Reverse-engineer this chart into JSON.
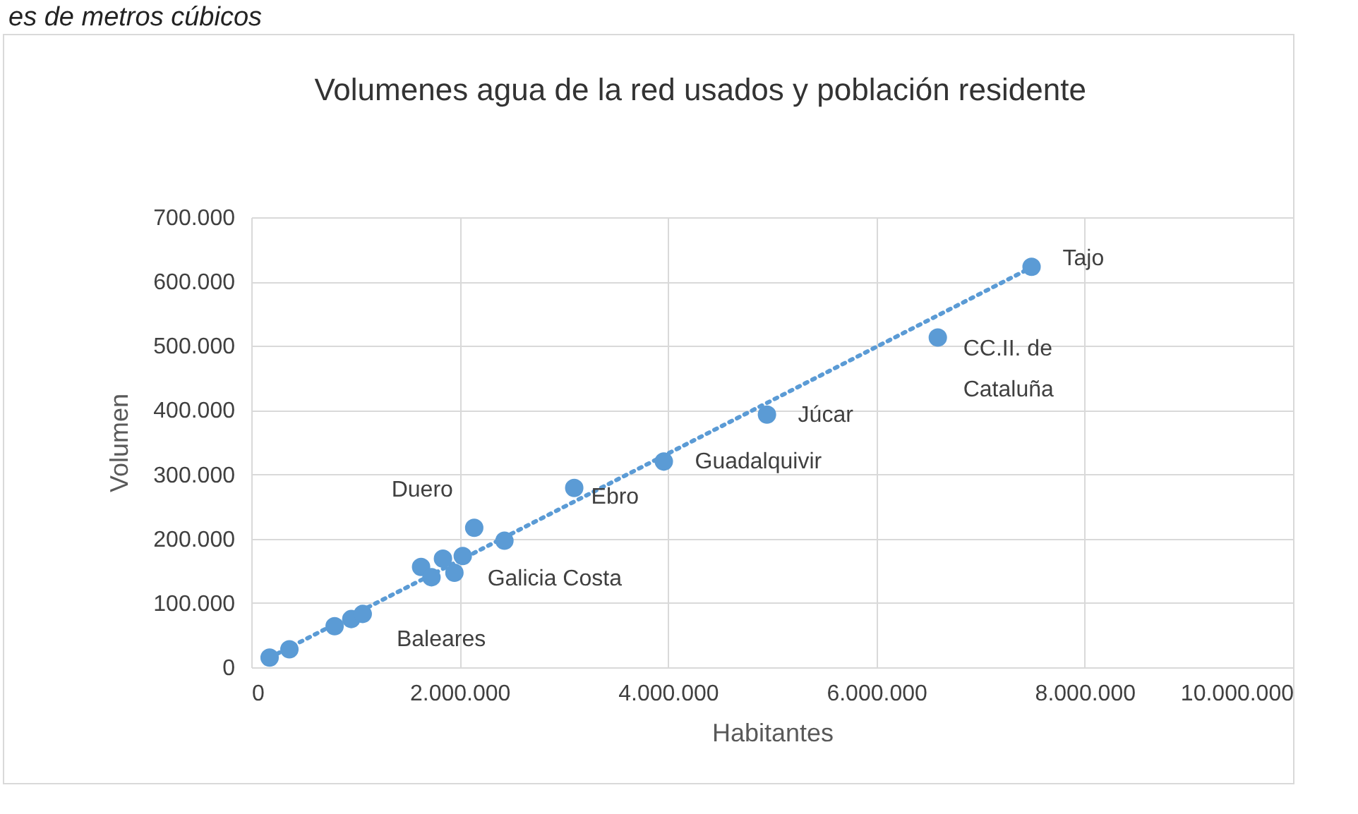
{
  "chart_data": {
    "type": "scatter",
    "title": "Volumenes agua de la red usados y población residente",
    "xlabel": "Habitantes",
    "ylabel": "Volumen",
    "xlim": [
      0,
      10000000
    ],
    "ylim": [
      0,
      700000
    ],
    "xticks": [
      {
        "value": 0,
        "label": "0"
      },
      {
        "value": 2000000,
        "label": "2.000.000"
      },
      {
        "value": 4000000,
        "label": "4.000.000"
      },
      {
        "value": 6000000,
        "label": "6.000.000"
      },
      {
        "value": 8000000,
        "label": "8.000.000"
      },
      {
        "value": 10000000,
        "label": "10.000.000"
      }
    ],
    "yticks": [
      {
        "value": 0,
        "label": "0"
      },
      {
        "value": 100000,
        "label": "100.000"
      },
      {
        "value": 200000,
        "label": "200.000"
      },
      {
        "value": 300000,
        "label": "300.000"
      },
      {
        "value": 400000,
        "label": "400.000"
      },
      {
        "value": 500000,
        "label": "500.000"
      },
      {
        "value": 600000,
        "label": "600.000"
      },
      {
        "value": 700000,
        "label": "700.000"
      }
    ],
    "grid": true,
    "legend": false,
    "series": [
      {
        "type": "scatter",
        "color": "#5b9bd5",
        "marker": "circle",
        "x": [
          176000,
          366000,
          800000,
          960000,
          1070000,
          1630000,
          1730000,
          1840000,
          1950000,
          2030000,
          2140000,
          2430000,
          3100000,
          3960000,
          4950000,
          6590000,
          7490000
        ],
        "values": [
          15000,
          28000,
          64000,
          75000,
          83000,
          156000,
          140000,
          169000,
          147000,
          173000,
          217000,
          197000,
          279000,
          320000,
          393000,
          513000,
          623000
        ]
      },
      {
        "type": "line",
        "color": "#5b9bd5",
        "line_style": "dotted",
        "x": [
          176000,
          7490000
        ],
        "values": [
          15000,
          622000
        ]
      }
    ],
    "annotations": [
      "es de metros cúbicos",
      {
        "text": "Tajo",
        "x": 7490000,
        "y": 623000
      },
      {
        "text": "CC.II. de\nCataluña",
        "x": 6590000,
        "y": 513000
      },
      {
        "text": "Júcar",
        "x": 4950000,
        "y": 393000
      },
      {
        "text": "Guadalquivir",
        "x": 3960000,
        "y": 320000
      },
      {
        "text": "Ebro",
        "x": 3100000,
        "y": 279000
      },
      {
        "text": "Duero",
        "x": 2140000,
        "y": 217000
      },
      {
        "text": "Galicia Costa",
        "x": 2430000,
        "y": 197000
      },
      {
        "text": "Baleares",
        "x": 1070000,
        "y": 83000
      }
    ]
  }
}
